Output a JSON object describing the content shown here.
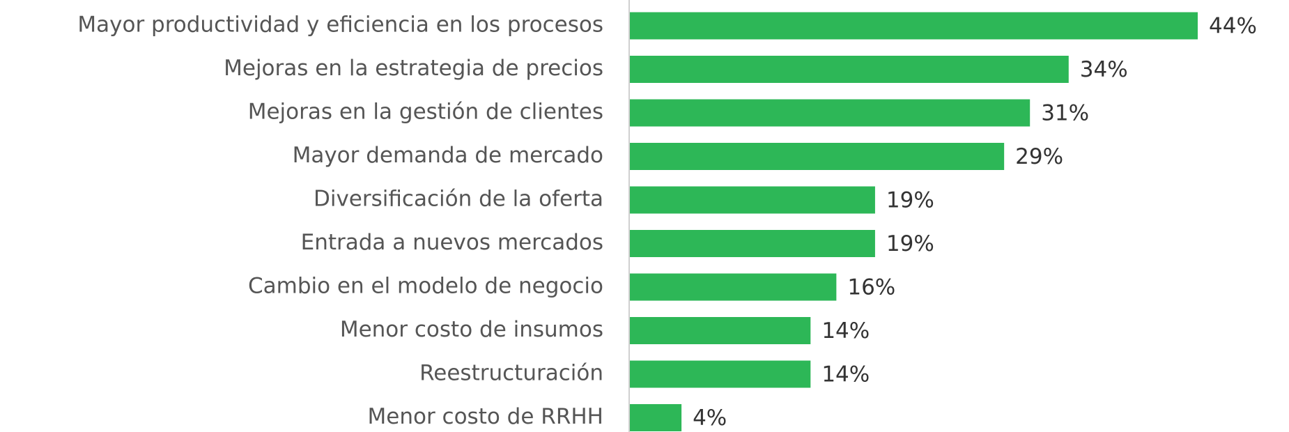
{
  "chart_data": {
    "type": "bar",
    "orientation": "horizontal",
    "categories": [
      "Mayor productividad y eficiencia en los procesos",
      "Mejoras en la estrategia de precios",
      "Mejoras en la gestión de clientes",
      "Mayor demanda de mercado",
      "Diversificación de la oferta",
      "Entrada a nuevos mercados",
      "Cambio en el modelo de negocio",
      "Menor costo de insumos",
      "Reestructuración",
      "Menor costo de RRHH"
    ],
    "values": [
      44,
      34,
      31,
      29,
      19,
      19,
      16,
      14,
      14,
      4
    ],
    "value_labels": [
      "44%",
      "34%",
      "31%",
      "29%",
      "19%",
      "19%",
      "16%",
      "14%",
      "14%",
      "4%"
    ],
    "color": "#2db757"
  }
}
